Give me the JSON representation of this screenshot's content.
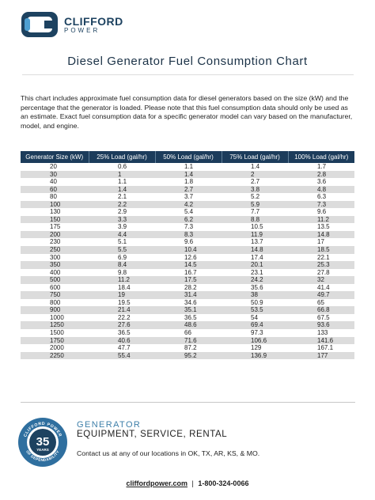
{
  "brand": {
    "name": "CLIFFORD",
    "sub": "POWER"
  },
  "title": "Diesel Generator Fuel Consumption Chart",
  "intro": "This chart includes approximate fuel consumption data for diesel generators based on the size (kW) and the percentage that the generator is loaded. Please note that this fuel consumption data should only be used as an estimate. Exact fuel consumption data for a specific generator model can vary based on the manufacturer, model, and engine.",
  "table": {
    "headers": [
      "Generator Size (kW)",
      "25% Load (gal/hr)",
      "50% Load (gal/hr)",
      "75% Load (gal/hr)",
      "100% Load (gal/hr)"
    ],
    "rows": [
      [
        "20",
        "0.6",
        "1.1",
        "1.4",
        "1.7"
      ],
      [
        "30",
        "1",
        "1.4",
        "2",
        "2.8"
      ],
      [
        "40",
        "1.1",
        "1.8",
        "2.7",
        "3.6"
      ],
      [
        "60",
        "1.4",
        "2.7",
        "3.8",
        "4.8"
      ],
      [
        "80",
        "2.1",
        "3.7",
        "5.2",
        "6.3"
      ],
      [
        "100",
        "2.2",
        "4.2",
        "5.9",
        "7.3"
      ],
      [
        "130",
        "2.9",
        "5.4",
        "7.7",
        "9.6"
      ],
      [
        "150",
        "3.3",
        "6.2",
        "8.8",
        "11.2"
      ],
      [
        "175",
        "3.9",
        "7.3",
        "10.5",
        "13.5"
      ],
      [
        "200",
        "4.4",
        "8.3",
        "11.9",
        "14.8"
      ],
      [
        "230",
        "5.1",
        "9.6",
        "13.7",
        "17"
      ],
      [
        "250",
        "5.5",
        "10.4",
        "14.8",
        "18.5"
      ],
      [
        "300",
        "6.9",
        "12.6",
        "17.4",
        "22.1"
      ],
      [
        "350",
        "8.4",
        "14.5",
        "20.1",
        "25.3"
      ],
      [
        "400",
        "9.8",
        "16.7",
        "23.1",
        "27.8"
      ],
      [
        "500",
        "11.2",
        "17.5",
        "24.2",
        "32"
      ],
      [
        "600",
        "18.4",
        "28.2",
        "35.6",
        "41.4"
      ],
      [
        "750",
        "19",
        "31.4",
        "38",
        "49.7"
      ],
      [
        "800",
        "19.5",
        "34.6",
        "50.9",
        "65"
      ],
      [
        "900",
        "21.4",
        "35.1",
        "53.5",
        "66.8"
      ],
      [
        "1000",
        "22.2",
        "36.5",
        "54",
        "67.5"
      ],
      [
        "1250",
        "27.6",
        "48.6",
        "69.4",
        "93.6"
      ],
      [
        "1500",
        "36.5",
        "66",
        "97.3",
        "133"
      ],
      [
        "1750",
        "40.6",
        "71.6",
        "106.6",
        "141.6"
      ],
      [
        "2000",
        "47.7",
        "87.2",
        "129",
        "167.1"
      ],
      [
        "2250",
        "55.4",
        "95.2",
        "136.9",
        "177"
      ]
    ]
  },
  "badge": {
    "top_text": "CLIFFORD POWER",
    "number": "35",
    "unit": "YEARS",
    "bottom_text": "OF DEPENDABILITY"
  },
  "tagline": {
    "line1": "GENERATOR",
    "line2": "EQUIPMENT, SERVICE, RENTAL"
  },
  "contact": "Contact us at any of our locations in OK, TX, AR, KS, & MO.",
  "footer": {
    "url": "cliffordpower.com",
    "separator": "|",
    "phone": "1-800-324-0066"
  },
  "colors": {
    "header_bg": "#1c3c5b",
    "brand": "#1d4260",
    "accent": "#3e7fa9",
    "stripe": "#dcdcdc"
  }
}
